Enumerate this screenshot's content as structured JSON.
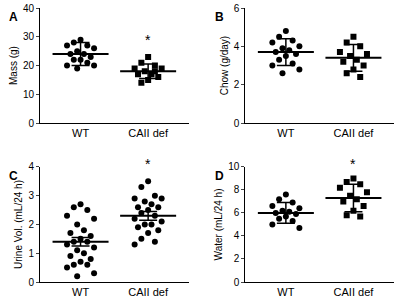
{
  "chart_data": [
    {
      "type": "scatter",
      "title": "A",
      "ylabel": "Mass (g)",
      "color": "#000000",
      "ylim": [
        0,
        40
      ],
      "yticks": [
        0,
        10,
        20,
        30,
        40
      ],
      "series": [
        {
          "name": "WT",
          "marker": "circle",
          "values": [
            29,
            28,
            27,
            27,
            26,
            25,
            24,
            24,
            23,
            22,
            22,
            21,
            20,
            20,
            19
          ],
          "mean": 24,
          "error": 4
        },
        {
          "name": "CAII def",
          "marker": "square",
          "values": [
            23,
            21,
            20,
            19,
            19,
            18,
            17,
            17,
            16,
            15,
            14,
            18
          ],
          "mean": 18,
          "error": 2.5
        }
      ],
      "annotations": [
        {
          "text": "*",
          "x": "CAII def",
          "y": 25.5
        }
      ]
    },
    {
      "type": "scatter",
      "title": "B",
      "ylabel": "Chow (g/day)",
      "color": "#000000",
      "ylim": [
        0,
        6
      ],
      "yticks": [
        0,
        2,
        4,
        6
      ],
      "series": [
        {
          "name": "WT",
          "marker": "circle",
          "values": [
            4.8,
            4.5,
            4.3,
            4.2,
            4.0,
            3.9,
            3.8,
            3.7,
            3.6,
            3.5,
            3.3,
            3.1,
            3.0,
            2.8,
            2.6
          ],
          "mean": 3.7,
          "error": 0.7
        },
        {
          "name": "CAII def",
          "marker": "square",
          "values": [
            4.5,
            4.2,
            4.0,
            3.7,
            3.6,
            3.5,
            3.3,
            3.2,
            3.0,
            2.8,
            2.6,
            2.4
          ],
          "mean": 3.4,
          "error": 0.7
        }
      ]
    },
    {
      "type": "scatter",
      "title": "C",
      "ylabel": "Urine Vol. (mL/24 h)",
      "color": "#000000",
      "ylim": [
        0,
        4
      ],
      "yticks": [
        0,
        1,
        2,
        3,
        4
      ],
      "series": [
        {
          "name": "WT",
          "marker": "circle",
          "values": [
            2.7,
            2.6,
            2.5,
            2.3,
            2.2,
            2.0,
            1.8,
            1.7,
            1.6,
            1.5,
            1.4,
            1.4,
            1.3,
            1.2,
            1.1,
            1.0,
            0.9,
            0.8,
            0.7,
            0.6,
            0.6,
            0.5,
            0.3,
            0.2
          ],
          "mean": 1.4,
          "error": 0.15
        },
        {
          "name": "CAII def",
          "marker": "circle",
          "values": [
            3.5,
            3.3,
            3.0,
            2.9,
            2.9,
            2.8,
            2.7,
            2.6,
            2.6,
            2.5,
            2.4,
            2.3,
            2.2,
            2.1,
            2.0,
            2.0,
            1.9,
            1.8,
            1.7,
            1.5,
            1.4,
            1.3
          ],
          "mean": 2.3,
          "error": 0.15
        }
      ],
      "annotations": [
        {
          "text": "*",
          "x": "CAII def",
          "y": 3.75
        }
      ]
    },
    {
      "type": "scatter",
      "title": "D",
      "ylabel": "Water (mL/24 h)",
      "color": "#000000",
      "ylim": [
        0,
        10
      ],
      "yticks": [
        0,
        2,
        4,
        6,
        8,
        10
      ],
      "series": [
        {
          "name": "WT",
          "marker": "circle",
          "values": [
            7.6,
            7.2,
            6.9,
            6.6,
            6.4,
            6.2,
            6.1,
            6.0,
            5.9,
            5.7,
            5.5,
            5.3,
            5.0,
            4.7
          ],
          "mean": 6.0,
          "error": 0.9
        },
        {
          "name": "CAII def",
          "marker": "square",
          "values": [
            9.0,
            8.7,
            8.5,
            8.2,
            7.8,
            7.5,
            7.2,
            7.0,
            6.6,
            6.2,
            5.8,
            5.7
          ],
          "mean": 7.3,
          "error": 1.2
        }
      ],
      "annotations": [
        {
          "text": "*",
          "x": "CAII def",
          "y": 9.4
        }
      ]
    }
  ]
}
